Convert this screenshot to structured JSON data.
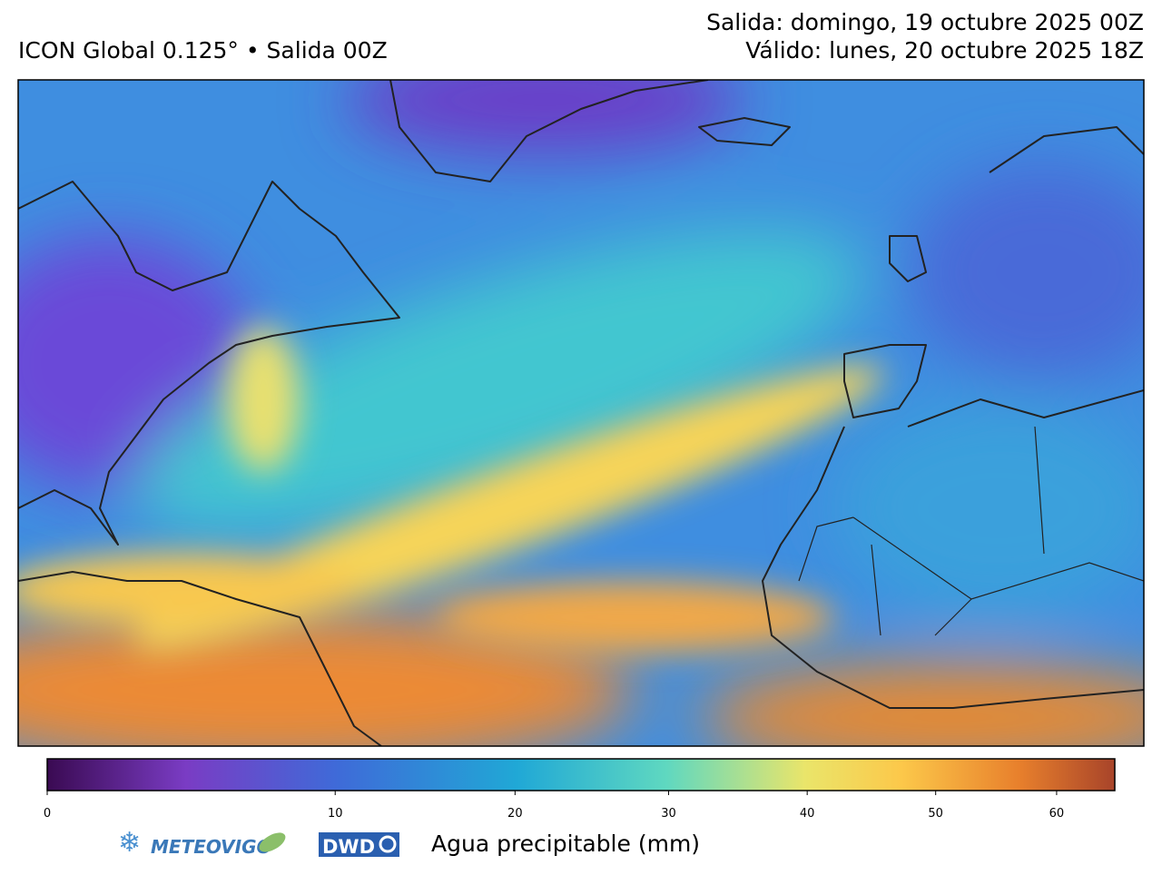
{
  "header": {
    "title": "ICON Global 0.125° • Salida 00Z",
    "run": "Salida: domingo, 19 octubre 2025 00Z",
    "valid": "Válido: lunes, 20 octubre 2025 18Z"
  },
  "colorbar": {
    "label": "Agua precipitable (mm)",
    "range": [
      0,
      65
    ],
    "ticks": [
      0,
      10,
      20,
      30,
      40,
      50,
      60
    ],
    "scale": "power",
    "exponent": 0.7
  },
  "logos": {
    "meteovigo": "METEOVIGO",
    "dwd": "DWD"
  }
}
